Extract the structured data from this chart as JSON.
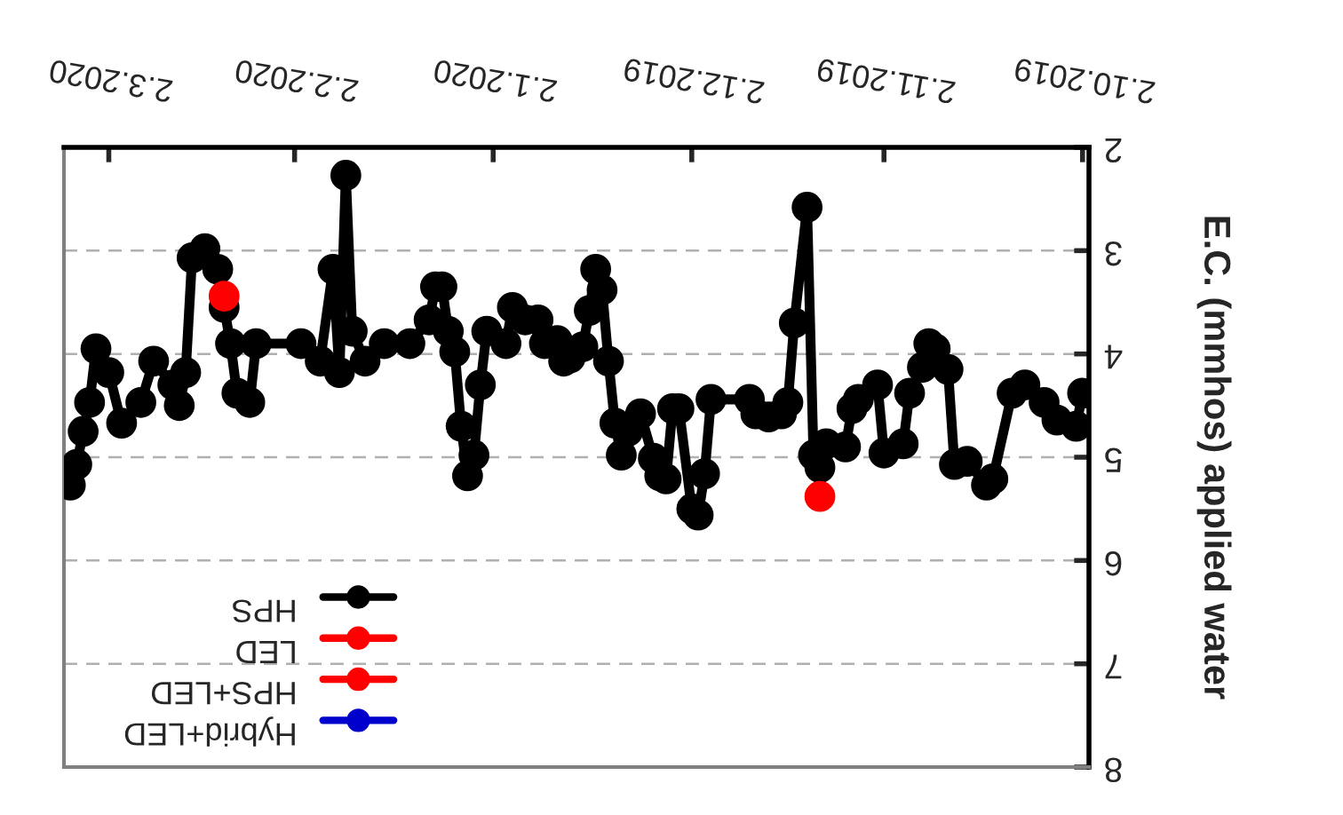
{
  "chart_data": {
    "type": "line",
    "ylabel": "E.C. (mmhos) applied water",
    "ylim": [
      8,
      2
    ],
    "yticks": [
      2,
      3,
      4,
      5,
      6,
      7,
      8
    ],
    "xlim": [
      "2020-03-09",
      "2019-10-01"
    ],
    "xticks": [
      {
        "value": "2019-10-02",
        "label": "2.10.2019"
      },
      {
        "value": "2019-11-02",
        "label": "2.11.2019"
      },
      {
        "value": "2019-12-02",
        "label": "2.12.2019"
      },
      {
        "value": "2020-01-02",
        "label": "2.1.2020"
      },
      {
        "value": "2020-02-02",
        "label": "2.2.2020"
      },
      {
        "value": "2020-03-02",
        "label": "2.3.2020"
      }
    ],
    "grid": "y",
    "legend": "bottom left",
    "line_style": "solid",
    "series": [
      {
        "name": "HPS",
        "color": "#000000",
        "marker": "circle",
        "x": [
          "2019-10-02",
          "2019-10-03",
          "2019-10-06",
          "2019-10-08",
          "2019-10-11",
          "2019-10-13",
          "2019-10-16",
          "2019-10-17",
          "2019-10-20",
          "2019-10-22",
          "2019-10-23",
          "2019-10-25",
          "2019-10-26",
          "2019-10-27",
          "2019-10-29",
          "2019-10-30",
          "2019-11-02",
          "2019-11-03",
          "2019-11-06",
          "2019-11-07",
          "2019-11-08",
          "2019-11-11",
          "2019-11-12",
          "2019-11-13",
          "2019-11-14",
          "2019-11-16",
          "2019-11-17",
          "2019-11-18",
          "2019-11-20",
          "2019-11-22",
          "2019-11-23",
          "2019-11-29",
          "2019-11-30",
          "2019-12-01",
          "2019-12-02",
          "2019-12-04",
          "2019-12-05",
          "2019-12-06",
          "2019-12-07",
          "2019-12-08",
          "2019-12-10",
          "2019-12-12",
          "2019-12-13",
          "2019-12-14",
          "2019-12-15",
          "2019-12-16",
          "2019-12-17",
          "2019-12-18",
          "2019-12-19",
          "2019-12-21",
          "2019-12-22",
          "2019-12-23",
          "2019-12-25",
          "2019-12-26",
          "2019-12-28",
          "2019-12-30",
          "2019-12-31",
          "2020-01-03",
          "2020-01-04",
          "2020-01-05",
          "2020-01-06",
          "2020-01-07",
          "2020-01-08",
          "2020-01-09",
          "2020-01-10",
          "2020-01-11",
          "2020-01-12",
          "2020-01-15",
          "2020-01-19",
          "2020-01-22",
          "2020-01-24",
          "2020-01-25",
          "2020-01-26",
          "2020-01-27",
          "2020-01-29",
          "2020-02-01",
          "2020-02-08",
          "2020-02-09",
          "2020-02-11",
          "2020-02-12",
          "2020-02-13",
          "2020-02-14",
          "2020-02-16",
          "2020-02-18",
          "2020-02-19",
          "2020-02-20",
          "2020-02-21",
          "2020-02-24",
          "2020-02-26",
          "2020-02-29",
          "2020-03-02",
          "2020-03-04",
          "2020-03-05",
          "2020-03-06",
          "2020-03-07",
          "2020-03-08"
        ],
        "values": [
          4.38,
          4.7,
          4.64,
          4.47,
          4.3,
          4.38,
          5.21,
          5.27,
          5.04,
          5.07,
          4.15,
          3.95,
          3.9,
          4.13,
          4.38,
          4.87,
          4.96,
          4.3,
          4.44,
          4.53,
          4.9,
          4.87,
          5.1,
          4.98,
          2.58,
          3.7,
          4.47,
          4.58,
          4.61,
          4.58,
          4.44,
          4.44,
          5.16,
          5.56,
          5.5,
          4.53,
          4.53,
          5.21,
          5.18,
          5.01,
          4.58,
          4.75,
          4.98,
          4.67,
          4.07,
          3.38,
          3.18,
          3.58,
          3.93,
          4.04,
          4.07,
          3.87,
          3.9,
          3.67,
          3.67,
          3.55,
          3.9,
          3.78,
          4.3,
          4.98,
          5.18,
          4.7,
          3.98,
          3.78,
          3.35,
          3.35,
          3.67,
          3.9,
          3.9,
          4.07,
          3.78,
          2.27,
          4.18,
          3.18,
          4.07,
          3.9,
          3.9,
          4.47,
          4.38,
          3.9,
          3.55,
          3.18,
          2.98,
          3.07,
          4.18,
          4.5,
          4.3,
          4.07,
          4.47,
          4.67,
          4.18,
          3.95,
          4.47,
          4.75,
          5.07,
          5.27
        ]
      },
      {
        "name": "LED",
        "color": "#ff0000",
        "marker": "circle",
        "x": [
          "2020-02-13"
        ],
        "values": [
          3.44
        ]
      },
      {
        "name": "HPS+LED",
        "color": "#ff0000",
        "marker": "circle",
        "x": [
          "2019-11-12"
        ],
        "values": [
          5.38
        ]
      },
      {
        "name": "Hybrid+LED",
        "color": "#0000cc",
        "marker": "circle"
      }
    ]
  }
}
